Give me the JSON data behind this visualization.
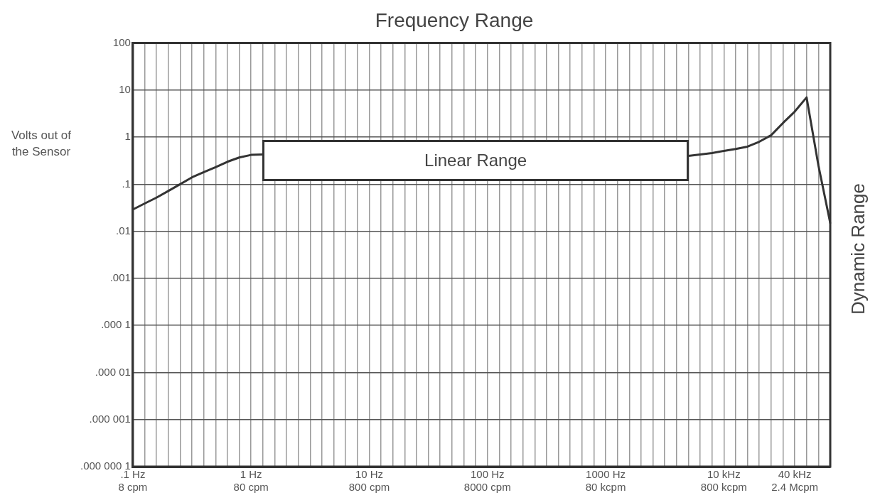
{
  "chart_data": {
    "type": "line",
    "title": "Frequency Range",
    "ylabel": "Volts out of the Sensor",
    "y2label": "Dynamic Range",
    "log": "y",
    "grid": true,
    "legend": false,
    "marker": "none",
    "line_style": "solid",
    "categories": [
      ".1 Hz\n8 cpm",
      null,
      null,
      null,
      null,
      null,
      null,
      null,
      null,
      null,
      "1 Hz\n80 cpm",
      null,
      null,
      null,
      null,
      null,
      null,
      null,
      null,
      null,
      "10 Hz\n800 cpm",
      null,
      null,
      null,
      null,
      null,
      null,
      null,
      null,
      null,
      "100 Hz\n8000 cpm",
      null,
      null,
      null,
      null,
      null,
      null,
      null,
      null,
      null,
      "1000 Hz\n80 kcpm",
      null,
      null,
      null,
      null,
      null,
      null,
      null,
      null,
      null,
      "10 kHz\n800 kcpm",
      null,
      null,
      null,
      null,
      null,
      "40 kHz\n2.4 Mcpm",
      null,
      null,
      null
    ],
    "series": [
      {
        "color": "#333333",
        "values": [
          0.029,
          0.039,
          0.052,
          0.072,
          0.1,
          0.14,
          0.18,
          0.23,
          0.3,
          0.37,
          0.42,
          0.43,
          null,
          null,
          null,
          null,
          null,
          null,
          null,
          null,
          null,
          null,
          null,
          null,
          null,
          null,
          null,
          null,
          null,
          null,
          null,
          null,
          null,
          null,
          null,
          null,
          null,
          null,
          null,
          null,
          null,
          null,
          null,
          null,
          null,
          null,
          null,
          0.4,
          0.43,
          0.46,
          0.51,
          0.56,
          0.63,
          0.8,
          1.1,
          2,
          3.5,
          7,
          0.25,
          0.015
        ]
      }
    ],
    "ylim": [
      1e-07,
      100
    ],
    "yticks": [
      {
        "value": 100,
        "label": "100"
      },
      {
        "value": 10,
        "label": "10"
      },
      {
        "value": 1,
        "label": "1"
      },
      {
        "value": 0.1,
        "label": ".1"
      },
      {
        "value": 0.01,
        "label": ".01"
      },
      {
        "value": 0.001,
        "label": ".001"
      },
      {
        "value": 0.0001,
        "label": ".000 1"
      },
      {
        "value": 1e-05,
        "label": ".000 01"
      },
      {
        "value": 1e-06,
        "label": ".000 001"
      },
      {
        "value": 1e-07,
        "label": ".000 000 1"
      }
    ],
    "annotations": [
      "Linear Range"
    ]
  }
}
